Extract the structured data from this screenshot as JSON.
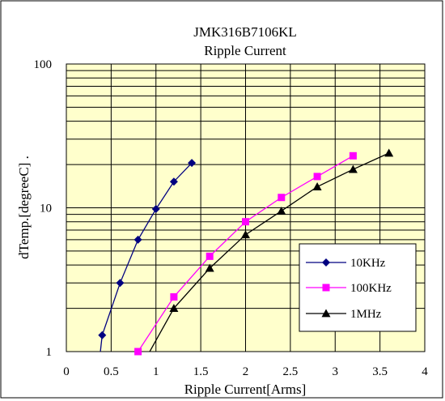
{
  "chart_data": {
    "type": "line",
    "title": "JMK316B7106KL",
    "subtitle": "Ripple Current",
    "xlabel": "Ripple Current[Arms]",
    "ylabel": "dTemp.[degreeC] .",
    "xlim": [
      0,
      4
    ],
    "ylim": [
      1,
      100
    ],
    "y_scale": "log",
    "x_ticks": [
      "0",
      "0.5",
      "1",
      "1.5",
      "2",
      "2.5",
      "3",
      "3.5",
      "4"
    ],
    "y_ticks": [
      "1",
      "10",
      "100"
    ],
    "grid": true,
    "legend_position": "lower-right",
    "colors": {
      "plot_background": "#FFFFCC",
      "grid": "#000000",
      "series_10k": "#000080",
      "series_100k": "#FF00FF",
      "series_1m": "#000000"
    },
    "series": [
      {
        "name": "10KHz",
        "marker": "diamond",
        "color": "#000080",
        "x": [
          0.4,
          0.6,
          0.8,
          1.0,
          1.2,
          1.4
        ],
        "y": [
          1.3,
          3.0,
          6.0,
          9.8,
          15.2,
          20.5
        ]
      },
      {
        "name": "100KHz",
        "marker": "square",
        "color": "#FF00FF",
        "x": [
          0.8,
          1.2,
          1.6,
          2.0,
          2.4,
          2.8,
          3.2
        ],
        "y": [
          1.0,
          2.4,
          4.6,
          8.0,
          11.8,
          16.5,
          23.0
        ]
      },
      {
        "name": "1MHz",
        "marker": "triangle",
        "color": "#000000",
        "x": [
          1.2,
          1.6,
          2.0,
          2.4,
          2.8,
          3.2,
          3.6
        ],
        "y": [
          2.0,
          3.8,
          6.5,
          9.5,
          14.0,
          18.5,
          24.0
        ]
      }
    ]
  }
}
